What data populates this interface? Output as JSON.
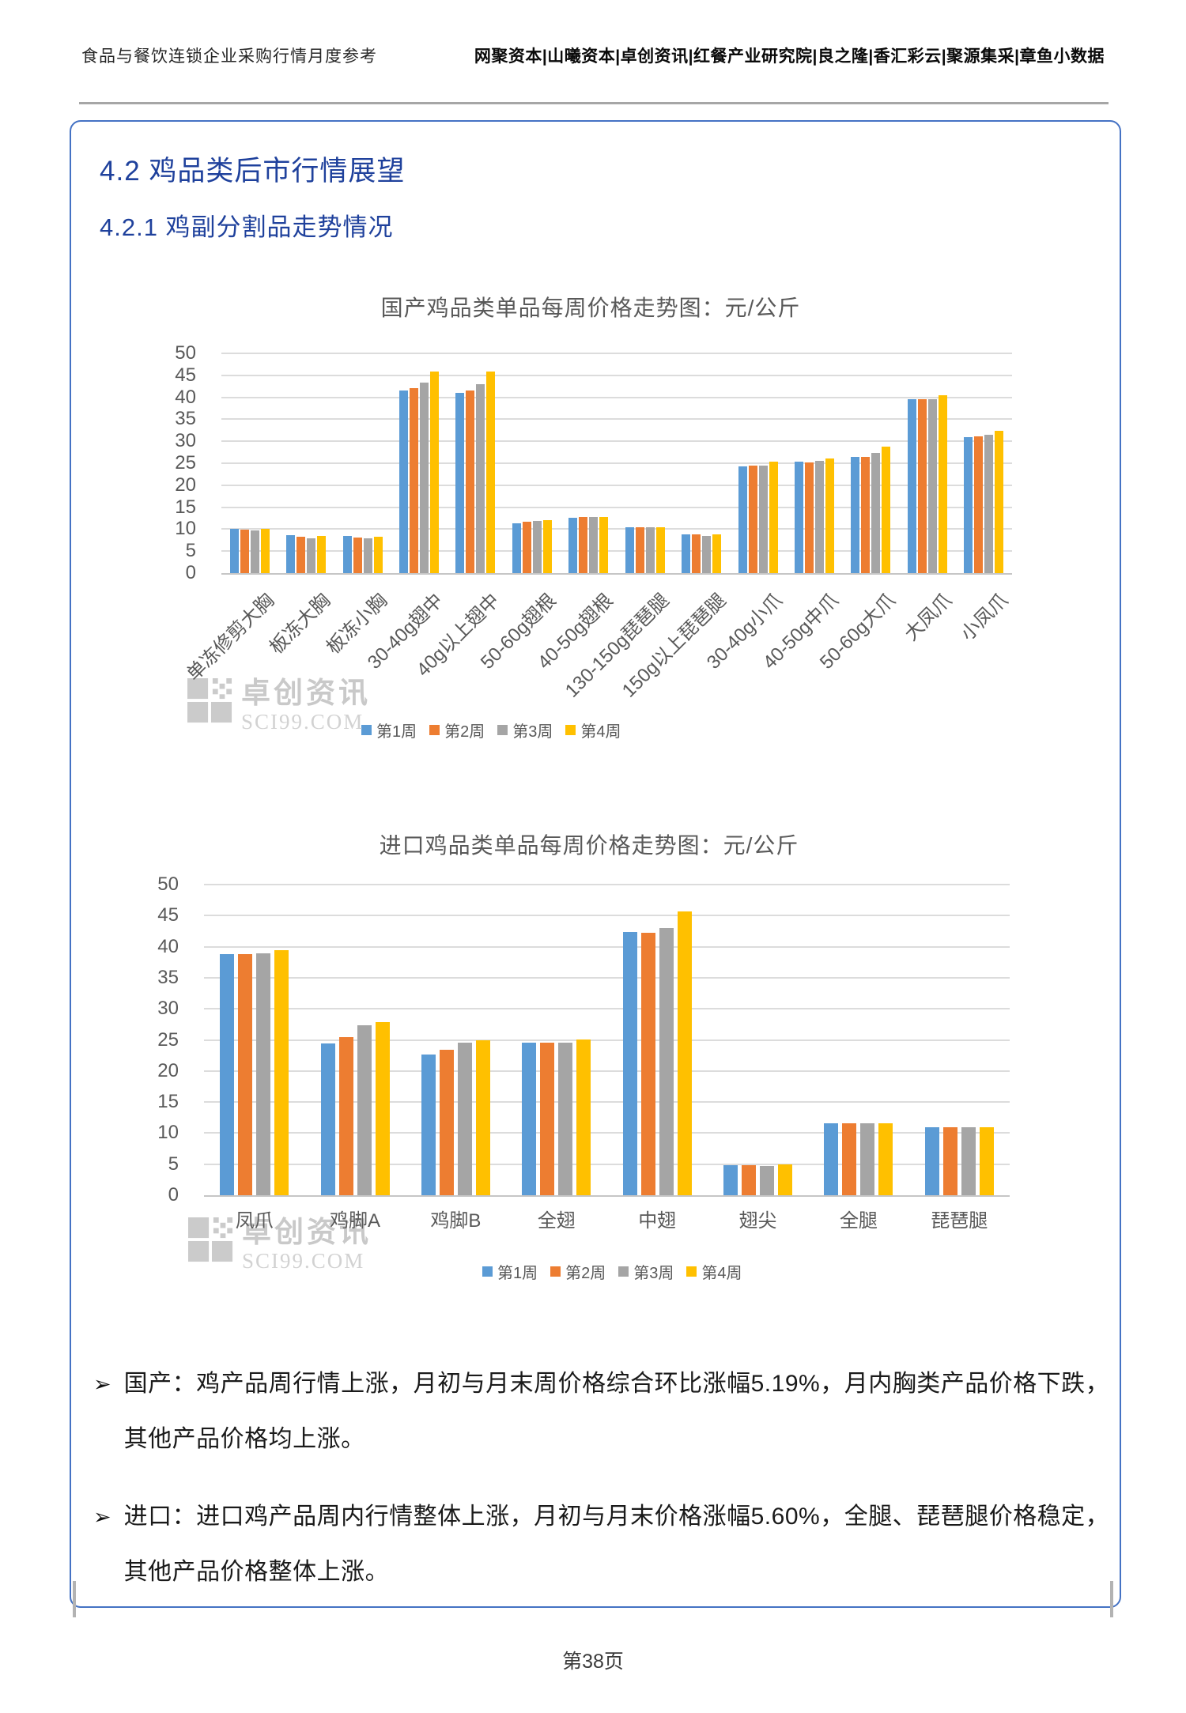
{
  "header": {
    "left": "食品与餐饮连锁企业采购行情月度参考",
    "right": "网聚资本|山曦资本|卓创资讯|红餐产业研究院|良之隆|香汇彩云|聚源集采|章鱼小数据"
  },
  "section": {
    "title": "4.2 鸡品类后市行情展望",
    "subtitle": "4.2.1 鸡副分割品走势情况"
  },
  "watermark": {
    "name": "卓创资讯",
    "domain": "SCI99.COM"
  },
  "colors": {
    "week1": "#5B9BD5",
    "week2": "#ED7D31",
    "week3": "#A5A5A5",
    "week4": "#FFC000",
    "title_blue": "#1F419C",
    "box_border": "#4472C4",
    "chart_text": "#595959",
    "grid_line": "#DCDCDC",
    "watermark_gray": "#C9C9C9"
  },
  "chart_data": [
    {
      "type": "bar",
      "title": "国产鸡品类单品每周价格走势图：元/公斤",
      "categories": [
        "单冻修剪大胸",
        "板冻大胸",
        "板冻小胸",
        "30-40g翅中",
        "40g以上翅中",
        "50-60g翅根",
        "40-50g翅根",
        "130-150g琵琶腿",
        "150g以上琵琶腿",
        "30-40g小爪",
        "40-50g中爪",
        "50-60g大爪",
        "大凤爪",
        "小凤爪"
      ],
      "series": [
        {
          "name": "第1周",
          "color": "#5B9BD5",
          "values": [
            10.1,
            8.7,
            8.5,
            41.5,
            41.0,
            11.3,
            12.6,
            10.4,
            8.8,
            24.3,
            25.3,
            26.5,
            39.6,
            30.9
          ]
        },
        {
          "name": "第2周",
          "color": "#ED7D31",
          "values": [
            9.9,
            8.3,
            8.1,
            42.1,
            41.6,
            11.7,
            12.7,
            10.5,
            8.8,
            24.4,
            25.1,
            26.4,
            39.6,
            31.1
          ]
        },
        {
          "name": "第3周",
          "color": "#A5A5A5",
          "values": [
            9.8,
            8.0,
            7.9,
            43.3,
            43.0,
            11.8,
            12.7,
            10.4,
            8.5,
            24.4,
            25.6,
            27.4,
            39.6,
            31.4
          ]
        },
        {
          "name": "第4周",
          "color": "#FFC000",
          "values": [
            10.1,
            8.4,
            8.2,
            45.9,
            45.8,
            12.1,
            12.8,
            10.5,
            8.9,
            25.3,
            26.1,
            28.8,
            40.5,
            32.4
          ]
        }
      ],
      "ylim": [
        0,
        50
      ],
      "ytick_step": 5,
      "grid": true,
      "legend_position": "bottom",
      "x_label_rotation": -45
    },
    {
      "type": "bar",
      "title": "进口鸡品类单品每周价格走势图：元/公斤",
      "categories": [
        "凤爪",
        "鸡脚A",
        "鸡脚B",
        "全翅",
        "中翅",
        "翅尖",
        "全腿",
        "琵琶腿"
      ],
      "series": [
        {
          "name": "第1周",
          "color": "#5B9BD5",
          "values": [
            38.8,
            24.4,
            22.6,
            24.6,
            42.4,
            4.8,
            11.6,
            11.0
          ]
        },
        {
          "name": "第2周",
          "color": "#ED7D31",
          "values": [
            38.8,
            25.5,
            23.4,
            24.6,
            42.3,
            4.8,
            11.6,
            11.0
          ]
        },
        {
          "name": "第3周",
          "color": "#A5A5A5",
          "values": [
            38.9,
            27.3,
            24.5,
            24.6,
            43.0,
            4.7,
            11.6,
            11.0
          ]
        },
        {
          "name": "第4周",
          "color": "#FFC000",
          "values": [
            39.4,
            27.9,
            25.0,
            25.1,
            45.7,
            5.0,
            11.6,
            11.0
          ]
        }
      ],
      "ylim": [
        0,
        50
      ],
      "ytick_step": 5,
      "grid": true,
      "legend_position": "bottom",
      "x_label_rotation": 0
    }
  ],
  "bullets": [
    {
      "marker": "➢",
      "text": "国产：鸡产品周行情上涨，月初与月末周价格综合环比涨幅5.19%，月内胸类产品价格下跌，其他产品价格均上涨。"
    },
    {
      "marker": "➢",
      "text": "进口：进口鸡产品周内行情整体上涨，月初与月末价格涨幅5.60%，全腿、琵琶腿价格稳定，其他产品价格整体上涨。"
    }
  ],
  "footer": {
    "page": "第38页"
  }
}
